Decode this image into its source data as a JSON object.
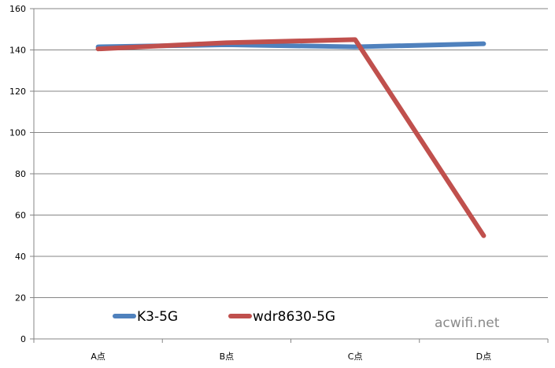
{
  "chart_data": {
    "type": "line",
    "title": "",
    "xlabel": "",
    "ylabel": "",
    "categories": [
      "A点",
      "B点",
      "C点",
      "D点"
    ],
    "ylim": [
      0,
      160
    ],
    "y_ticks": [
      0,
      20,
      40,
      60,
      80,
      100,
      120,
      140,
      160
    ],
    "grid": true,
    "legend_position": "bottom-left inside plot",
    "series": [
      {
        "name": "K3-5G",
        "values": [
          141.5,
          142.5,
          141.5,
          143
        ],
        "color": "#4f81bd"
      },
      {
        "name": "wdr8630-5G",
        "values": [
          140.5,
          143.5,
          145,
          50
        ],
        "color": "#c0504d"
      }
    ]
  },
  "watermark": {
    "text": "acwifi.net"
  }
}
